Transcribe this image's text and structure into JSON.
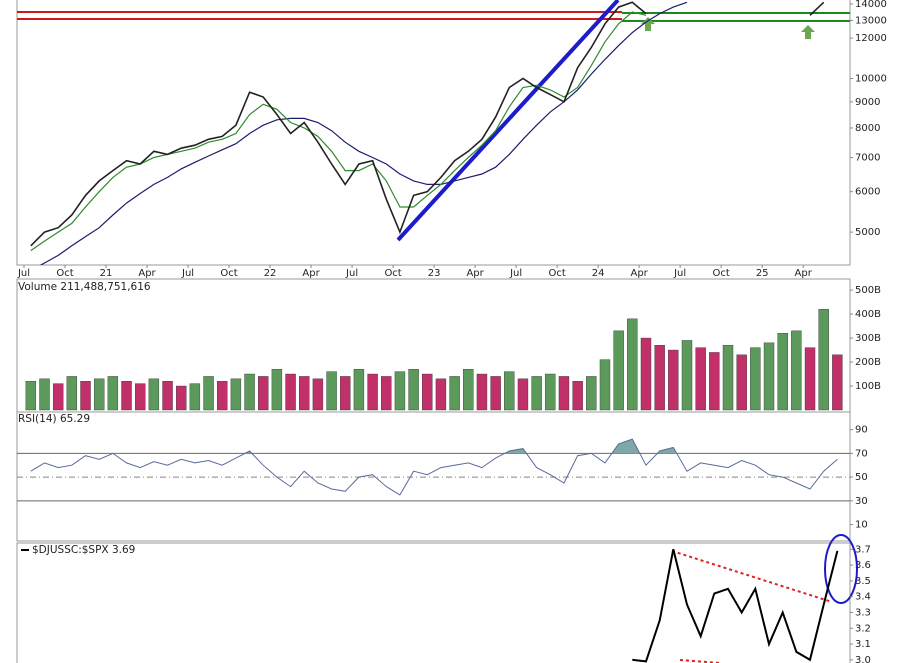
{
  "chart_data": [
    {
      "type": "line",
      "log": true,
      "categories": [
        "Jul",
        null,
        null,
        "Oct",
        null,
        null,
        "21",
        null,
        null,
        "Apr",
        null,
        null,
        "Jul",
        null,
        null,
        "Oct",
        null,
        null,
        "22",
        null,
        null,
        "Apr",
        null,
        null,
        "Jul",
        null,
        null,
        "Oct",
        null,
        null,
        "23",
        null,
        null,
        "Apr",
        null,
        null,
        "Jul",
        null,
        null,
        "Oct",
        null,
        null,
        "24",
        null,
        null,
        "Apr",
        null,
        null,
        "Jul",
        null,
        null,
        "Oct",
        null,
        null,
        "25",
        null,
        null,
        "Apr",
        null,
        null
      ],
      "ylim": [
        4310,
        14250
      ],
      "yticks": [
        5000,
        6000,
        7000,
        8000,
        9000,
        10000,
        12000,
        13000,
        14000
      ],
      "series": [
        {
          "color": "#222222",
          "values": [
            4700,
            5000,
            5100,
            5400,
            5900,
            6300,
            6600,
            6900,
            6800,
            7200,
            7100,
            7300,
            7400,
            7600,
            7700,
            8100,
            9400,
            9200,
            8500,
            7800,
            8200,
            7500,
            6800,
            6200,
            6800,
            6900,
            5800,
            5000,
            5900,
            6000,
            6400,
            6900,
            7200,
            7600,
            8400,
            9600,
            10000,
            9600,
            9300,
            9000,
            10500,
            11500,
            12800,
            13800,
            14100,
            13400,
            null,
            null,
            null,
            null,
            null,
            null,
            null,
            null,
            null,
            null,
            null,
            13300,
            14100,
            null
          ]
        },
        {
          "color": "#2e8b2e",
          "values": [
            4600,
            4800,
            5000,
            5200,
            5600,
            6000,
            6400,
            6700,
            6800,
            7000,
            7100,
            7200,
            7300,
            7500,
            7600,
            7800,
            8500,
            8900,
            8700,
            8200,
            8000,
            7700,
            7200,
            6600,
            6600,
            6800,
            6300,
            5600,
            5600,
            5900,
            6200,
            6600,
            7000,
            7400,
            7900,
            8800,
            9600,
            9700,
            9500,
            9200,
            9600,
            10600,
            11800,
            12800,
            13500,
            13300,
            null,
            null,
            null,
            null,
            null,
            null,
            null,
            null,
            null,
            null,
            null,
            null,
            null,
            null
          ]
        },
        {
          "color": "#1c1c6e",
          "values": [
            4200,
            4350,
            4500,
            4700,
            4900,
            5100,
            5400,
            5700,
            5950,
            6200,
            6400,
            6650,
            6850,
            7050,
            7250,
            7450,
            7800,
            8100,
            8300,
            8350,
            8350,
            8200,
            7900,
            7500,
            7200,
            7000,
            6800,
            6500,
            6300,
            6200,
            6200,
            6300,
            6400,
            6500,
            6700,
            7100,
            7600,
            8100,
            8600,
            9000,
            9500,
            10200,
            10900,
            11600,
            12300,
            12900,
            13400,
            13800,
            14100,
            null,
            null,
            null,
            null,
            null,
            null,
            null,
            null,
            null,
            null,
            null
          ]
        }
      ]
    },
    {
      "type": "bar",
      "title": "Volume 211,488,751,616",
      "ylim": [
        0,
        542
      ],
      "yticks": [
        {
          "value": 100,
          "label": "100B"
        },
        {
          "value": 200,
          "label": "200B"
        },
        {
          "value": 300,
          "label": "300B"
        },
        {
          "value": 400,
          "label": "400B"
        },
        {
          "value": 500,
          "label": "500B"
        }
      ],
      "up_color": "#5c9a5c",
      "down_color": "#c2306a",
      "values": [
        120,
        130,
        110,
        140,
        120,
        130,
        140,
        120,
        110,
        130,
        120,
        100,
        110,
        140,
        120,
        130,
        150,
        140,
        170,
        150,
        140,
        130,
        160,
        140,
        170,
        150,
        140,
        160,
        170,
        150,
        130,
        140,
        170,
        150,
        140,
        160,
        130,
        140,
        150,
        140,
        120,
        140,
        210,
        330,
        380,
        300,
        270,
        250,
        290,
        260,
        240,
        270,
        230,
        260,
        280,
        320,
        330,
        260,
        420,
        230
      ]
    },
    {
      "type": "line",
      "title": "RSI(14) 65.29",
      "ylim": [
        -3,
        104
      ],
      "yticks": [
        10,
        30,
        50,
        70,
        90
      ],
      "bands": [
        30,
        70
      ],
      "midline": 50,
      "color": "#5a6a9a",
      "fill": "#7fa8a8",
      "values": [
        55,
        62,
        58,
        60,
        68,
        65,
        70,
        62,
        58,
        63,
        60,
        65,
        62,
        64,
        60,
        66,
        72,
        60,
        50,
        42,
        55,
        45,
        40,
        38,
        50,
        52,
        42,
        35,
        55,
        52,
        58,
        60,
        62,
        58,
        66,
        72,
        74,
        58,
        52,
        45,
        68,
        70,
        62,
        78,
        82,
        60,
        72,
        75,
        55,
        62,
        60,
        58,
        64,
        60,
        52,
        50,
        45,
        40,
        55,
        65
      ]
    },
    {
      "type": "line",
      "title": "$DJUSSC:$SPX 3.69",
      "ylim": [
        2.98,
        3.74
      ],
      "yticks": [
        {
          "value": 3,
          "label": "3.0"
        },
        3.1,
        3.2,
        3.3,
        3.4,
        3.5,
        3.6,
        3.7
      ],
      "color": "#000000",
      "values": [
        null,
        null,
        null,
        null,
        null,
        null,
        null,
        null,
        null,
        null,
        null,
        null,
        null,
        null,
        null,
        null,
        null,
        null,
        null,
        null,
        null,
        null,
        null,
        null,
        null,
        null,
        null,
        null,
        null,
        null,
        null,
        null,
        null,
        null,
        null,
        null,
        null,
        null,
        null,
        null,
        null,
        null,
        null,
        null,
        3.0,
        2.99,
        3.25,
        3.7,
        3.35,
        3.15,
        3.42,
        3.45,
        3.3,
        3.45,
        3.1,
        3.3,
        3.05,
        3.0,
        3.35,
        3.69
      ]
    }
  ]
}
